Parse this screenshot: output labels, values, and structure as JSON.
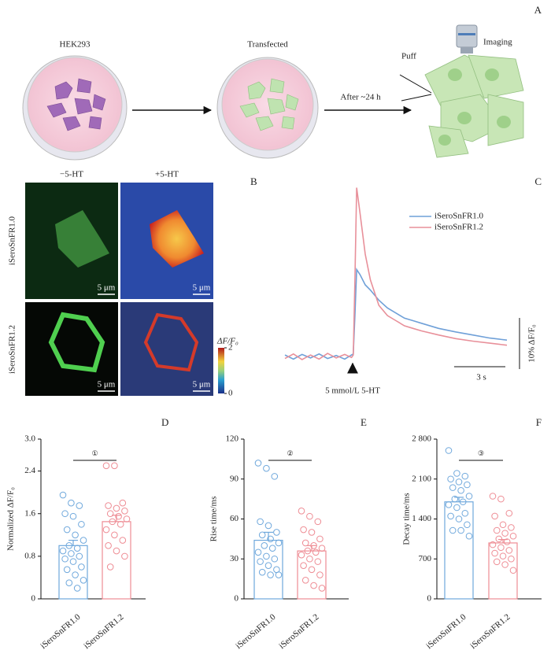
{
  "panel_labels": [
    "A",
    "B",
    "C",
    "D",
    "E",
    "F"
  ],
  "diagram": {
    "hek": "HEK293",
    "transfected": "Transfected",
    "after": "After ~24 h",
    "puff": "Puff",
    "imaging": "Imaging"
  },
  "images": {
    "columns": [
      "−5-HT",
      "+5-HT"
    ],
    "rows": [
      "iSeroSnFR1.0",
      "iSeroSnFR1.2"
    ],
    "scale_bar": "5 μm",
    "colorbar": {
      "label": "ΔF/F₀",
      "ticks": [
        0,
        2
      ]
    }
  },
  "chart_data": [
    {
      "type": "line",
      "x": [
        0,
        0.5,
        1,
        1.5,
        2,
        2.5,
        3,
        3.5,
        3.9,
        4.0,
        4.1,
        4.2,
        4.4,
        4.7,
        5,
        5.5,
        6,
        6.5,
        7,
        7.5,
        8,
        9,
        10,
        11,
        12,
        13
      ],
      "series": [
        {
          "name": "iSeroSnFR1.0",
          "color": "#6fa0d8",
          "values": [
            0.3,
            -0.5,
            0.4,
            -0.3,
            0.5,
            -0.4,
            0.2,
            -0.5,
            0.3,
            0.5,
            8,
            17,
            16,
            14,
            13,
            11,
            9.5,
            8.5,
            7.5,
            7,
            6.5,
            5.5,
            4.8,
            4.2,
            3.6,
            3.2
          ]
        },
        {
          "name": "iSeroSnFR1.2",
          "color": "#e8909a",
          "values": [
            -0.4,
            0.5,
            -0.6,
            0.3,
            -0.5,
            0.6,
            -0.3,
            0.4,
            -0.2,
            0.3,
            15,
            33,
            28,
            20,
            15,
            10,
            8,
            7,
            6,
            5.5,
            5,
            4.2,
            3.5,
            3,
            2.6,
            2.2
          ]
        }
      ],
      "xlim": [
        0,
        13
      ],
      "ylim": [
        -3,
        36
      ],
      "annotation": "5 mmol/L 5-HT",
      "y_scalebar": {
        "value": 10,
        "label": "10% ΔF/F₀"
      },
      "x_scalebar": {
        "value": 3,
        "label": "3 s"
      }
    },
    {
      "type": "bar",
      "ylabel": "Normalized ΔF/F₀",
      "categories": [
        "iSeroSnFR1.0",
        "iSeroSnFR1.2"
      ],
      "colors": [
        "#6fa8dc",
        "#ee8c94"
      ],
      "values": [
        1.0,
        1.45
      ],
      "errors": [
        0.1,
        0.12
      ],
      "points": [
        [
          1.95,
          1.8,
          1.75,
          1.6,
          1.55,
          1.4,
          1.3,
          1.2,
          1.1,
          1.0,
          0.95,
          0.9,
          0.85,
          0.8,
          0.75,
          0.7,
          0.6,
          0.55,
          0.45,
          0.35,
          0.3,
          0.2
        ],
        [
          2.5,
          2.5,
          1.8,
          1.75,
          1.7,
          1.65,
          1.6,
          1.55,
          1.5,
          1.45,
          1.4,
          1.3,
          1.2,
          1.1,
          1.0,
          0.9,
          0.8,
          0.6
        ]
      ],
      "annotation": "①",
      "ylim": [
        0,
        3
      ],
      "yticks": [
        0,
        0.8,
        1.6,
        2.4,
        {
          "value": 3,
          "label": "3.0"
        }
      ]
    },
    {
      "type": "bar",
      "ylabel": "Rise time/ms",
      "categories": [
        "iSeroSnFR1.0",
        "iSeroSnFR1.2"
      ],
      "colors": [
        "#6fa8dc",
        "#ee8c94"
      ],
      "values": [
        44,
        36
      ],
      "errors": [
        6,
        4
      ],
      "points": [
        [
          102,
          98,
          92,
          58,
          55,
          50,
          48,
          45,
          42,
          40,
          38,
          35,
          32,
          30,
          28,
          25,
          22,
          20,
          18,
          18
        ],
        [
          66,
          62,
          58,
          52,
          50,
          45,
          42,
          40,
          38,
          36,
          35,
          33,
          30,
          28,
          25,
          22,
          18,
          14,
          10,
          8
        ]
      ],
      "annotation": "②",
      "ylim": [
        0,
        120
      ],
      "yticks": [
        0,
        30,
        60,
        90,
        120
      ]
    },
    {
      "type": "bar",
      "ylabel": "Decay time/ms",
      "categories": [
        "iSeroSnFR1.0",
        "iSeroSnFR1.2"
      ],
      "colors": [
        "#6fa8dc",
        "#ee8c94"
      ],
      "values": [
        1700,
        980
      ],
      "errors": [
        80,
        60
      ],
      "points": [
        [
          2600,
          2200,
          2150,
          2100,
          2050,
          2000,
          1950,
          1900,
          1800,
          1750,
          1700,
          1650,
          1600,
          1500,
          1450,
          1400,
          1300,
          1200,
          1200,
          1100
        ],
        [
          1800,
          1750,
          1500,
          1450,
          1300,
          1250,
          1200,
          1150,
          1100,
          1050,
          1000,
          950,
          900,
          850,
          800,
          750,
          700,
          650,
          600,
          500
        ]
      ],
      "annotation": "③",
      "ylim": [
        0,
        2800
      ],
      "yticks": [
        0,
        700,
        {
          "value": 1400,
          "label": "1 400"
        },
        {
          "value": 2100,
          "label": "2 100"
        },
        {
          "value": 2800,
          "label": "2 800"
        }
      ]
    }
  ]
}
